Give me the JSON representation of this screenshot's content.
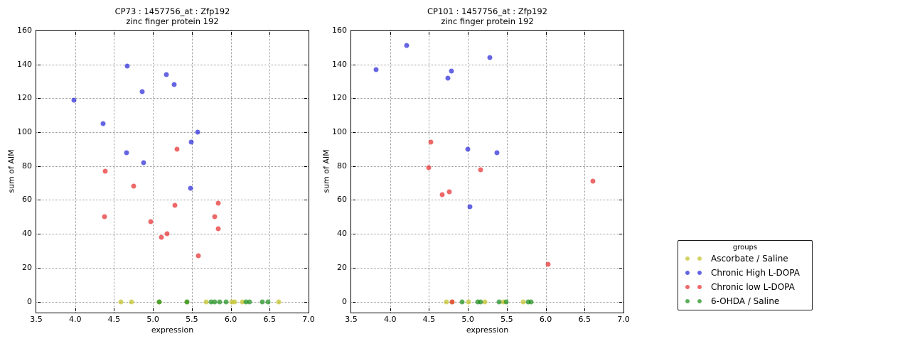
{
  "figure": {
    "background": "#ffffff",
    "grid_color": "#999999",
    "groups": [
      {
        "name": "Ascorbate / Saline",
        "color": "#c2c228"
      },
      {
        "name": "Chronic High L-DOPA",
        "color": "#2a2ad8"
      },
      {
        "name": "Chronic low L-DOPA",
        "color": "#e62e2e"
      },
      {
        "name": "6-OHDA / Saline",
        "color": "#1f8f1f"
      }
    ],
    "legend": {
      "title": "groups"
    }
  },
  "chart_data": [
    {
      "type": "scatter",
      "title": "CP73 : 1457756_at : Zfp192",
      "subtitle": "zinc finger protein 192",
      "xlabel": "expression",
      "ylabel": "sum of AIM",
      "xlim": [
        3.5,
        7.0
      ],
      "ylim": [
        -6.5,
        160
      ],
      "xticks": [
        3.5,
        4.0,
        4.5,
        5.0,
        5.5,
        6.0,
        6.5,
        7.0
      ],
      "xtick_labels": [
        "3.5",
        "4.0",
        "4.5",
        "5.0",
        "5.5",
        "6.0",
        "6.5",
        "7.0"
      ],
      "yticks": [
        0,
        20,
        40,
        60,
        80,
        100,
        120,
        140,
        160
      ],
      "grid": true,
      "legend_position": "outside-right",
      "series": [
        {
          "name": "Ascorbate / Saline",
          "points": [
            [
              4.59,
              0
            ],
            [
              4.72,
              0
            ],
            [
              5.08,
              0
            ],
            [
              5.44,
              0
            ],
            [
              5.68,
              0
            ],
            [
              6.01,
              0
            ],
            [
              6.05,
              0
            ],
            [
              6.15,
              0
            ],
            [
              6.62,
              0
            ]
          ]
        },
        {
          "name": "Chronic High L-DOPA",
          "points": [
            [
              3.98,
              119
            ],
            [
              4.36,
              105
            ],
            [
              4.66,
              88
            ],
            [
              4.67,
              139
            ],
            [
              4.86,
              124
            ],
            [
              4.88,
              82
            ],
            [
              5.17,
              134
            ],
            [
              5.27,
              128
            ],
            [
              5.48,
              67
            ],
            [
              5.49,
              94
            ],
            [
              5.57,
              100
            ]
          ]
        },
        {
          "name": "Chronic low L-DOPA",
          "points": [
            [
              4.38,
              50
            ],
            [
              4.39,
              77
            ],
            [
              4.75,
              68
            ],
            [
              4.97,
              47
            ],
            [
              5.11,
              38
            ],
            [
              5.18,
              40
            ],
            [
              5.28,
              57
            ],
            [
              5.31,
              90
            ],
            [
              5.58,
              27
            ],
            [
              5.79,
              50
            ],
            [
              5.84,
              43
            ],
            [
              5.84,
              58
            ]
          ]
        },
        {
          "name": "6-OHDA / Saline",
          "points": [
            [
              5.08,
              0
            ],
            [
              5.44,
              0
            ],
            [
              5.75,
              0
            ],
            [
              5.79,
              0
            ],
            [
              5.86,
              0
            ],
            [
              5.94,
              0
            ],
            [
              6.2,
              0
            ],
            [
              6.24,
              0
            ],
            [
              6.41,
              0
            ],
            [
              6.48,
              0
            ]
          ]
        }
      ]
    },
    {
      "type": "scatter",
      "title": "CP101 : 1457756_at : Zfp192",
      "subtitle": "zinc finger protein 192",
      "xlabel": "expression",
      "ylabel": "sum of AIM",
      "xlim": [
        3.5,
        7.0
      ],
      "ylim": [
        -6.5,
        160
      ],
      "xticks": [
        3.5,
        4.0,
        4.5,
        5.0,
        5.5,
        6.0,
        6.5,
        7.0
      ],
      "xtick_labels": [
        "3.5",
        "4.0",
        "4.5",
        "5.0",
        "5.5",
        "6.0",
        "6.5",
        "7.0"
      ],
      "yticks": [
        0,
        20,
        40,
        60,
        80,
        100,
        120,
        140,
        160
      ],
      "grid": true,
      "legend_position": "outside-right",
      "series": [
        {
          "name": "Ascorbate / Saline",
          "points": [
            [
              4.72,
              0
            ],
            [
              4.8,
              0
            ],
            [
              5.01,
              0
            ],
            [
              5.22,
              0
            ],
            [
              5.46,
              0
            ],
            [
              5.71,
              0
            ]
          ]
        },
        {
          "name": "Chronic High L-DOPA",
          "points": [
            [
              3.82,
              137
            ],
            [
              4.21,
              151
            ],
            [
              4.74,
              132
            ],
            [
              4.79,
              136
            ],
            [
              5.0,
              90
            ],
            [
              5.03,
              56
            ],
            [
              5.28,
              144
            ],
            [
              5.37,
              88
            ]
          ]
        },
        {
          "name": "Chronic low L-DOPA",
          "points": [
            [
              4.5,
              79
            ],
            [
              4.52,
              94
            ],
            [
              4.67,
              63
            ],
            [
              4.76,
              65
            ],
            [
              4.8,
              0
            ],
            [
              5.16,
              78
            ],
            [
              6.03,
              22
            ],
            [
              6.61,
              71
            ]
          ]
        },
        {
          "name": "6-OHDA / Saline",
          "points": [
            [
              4.93,
              0
            ],
            [
              5.13,
              0
            ],
            [
              5.16,
              0
            ],
            [
              5.4,
              0
            ],
            [
              5.49,
              0
            ],
            [
              5.78,
              0
            ],
            [
              5.81,
              0
            ]
          ]
        }
      ]
    }
  ]
}
